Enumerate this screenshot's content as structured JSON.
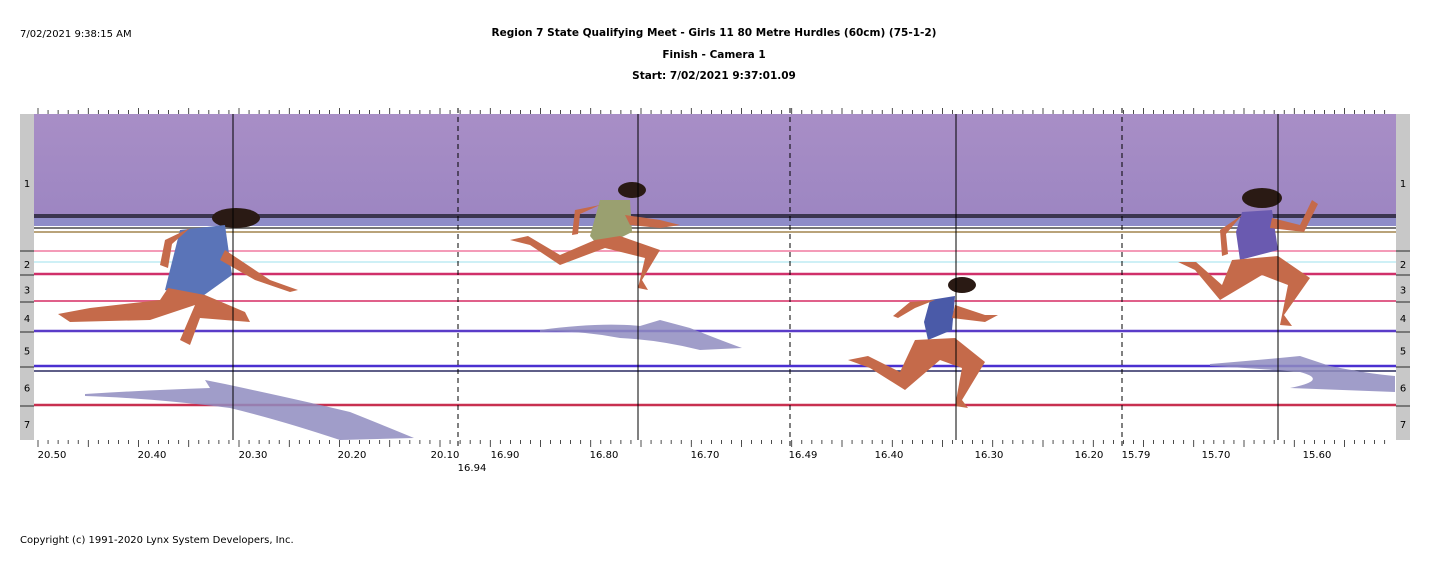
{
  "header": {
    "timestamp": "7/02/2021 9:38:15 AM",
    "title": "Region 7 State Qualifying Meet - Girls 11 80 Metre Hurdles (60cm) (75-1-2)",
    "subtitle": "Finish - Camera 1",
    "start": "Start: 7/02/2021 9:37:01.09"
  },
  "lanes": [
    "1",
    "2",
    "3",
    "4",
    "5",
    "6",
    "7"
  ],
  "time_labels": [
    "20.50",
    "20.40",
    "20.30",
    "20.20",
    "20.10",
    "16.94",
    "16.90",
    "16.80",
    "16.70",
    "16.49",
    "16.40",
    "16.30",
    "16.20",
    "15.79",
    "15.70",
    "15.60"
  ],
  "footer": "Copyright (c) 1991-2020 Lynx System Developers, Inc."
}
